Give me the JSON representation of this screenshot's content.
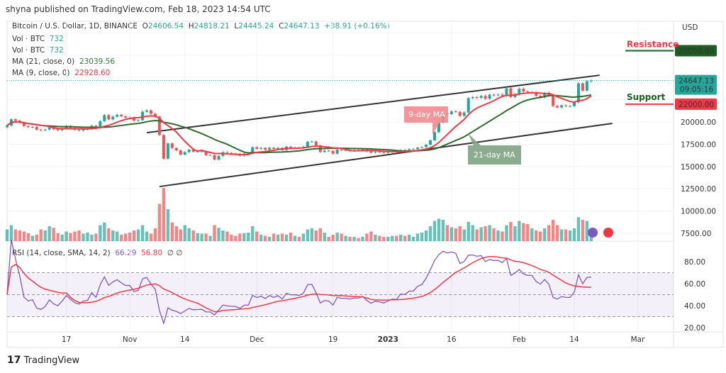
{
  "header": {
    "published": "shyna published on TradingView.com, Feb 18, 2023 14:54 UTC"
  },
  "legend": {
    "symbol": "Bitcoin / U.S. Dollar, 1D, BINANCE",
    "o_label": "O",
    "o": "24606.54",
    "h_label": "H",
    "h": "24818.21",
    "l_label": "L",
    "l": "24445.24",
    "c_label": "C",
    "c": "24647.13",
    "change": "+38.91 (+0.16%)",
    "vol1_label": "Vol · BTC",
    "vol1": "732",
    "vol2_label": "Vol · BTC",
    "vol2": "732",
    "ma21_label": "MA (21, close, 0)",
    "ma21": "23039.56",
    "ma9_label": "MA (9, close, 0)",
    "ma9": "22928.60",
    "rsi_label": "RSI (14, close, SMA, 14, 2)",
    "rsi": "66.29",
    "rsi_sma": "56.80",
    "rsi_extra": "∅ ∅"
  },
  "price_axis": {
    "currency": "USD",
    "ticks": [
      "20000.00",
      "17500.00",
      "15000.00",
      "12500.00",
      "10000.00",
      "7500.00"
    ],
    "current_price": "24647.13",
    "countdown": "09:05:16",
    "resistance_price": "28000.00",
    "support_price": "22000.00"
  },
  "rsi_axis": {
    "ticks": [
      "80.00",
      "60.00",
      "40.00",
      "20.00"
    ]
  },
  "time_axis": {
    "ticks": [
      {
        "label": "17",
        "idx": 14
      },
      {
        "label": "Nov",
        "idx": 29
      },
      {
        "label": "14",
        "idx": 42
      },
      {
        "label": "Dec",
        "idx": 59
      },
      {
        "label": "19",
        "idx": 77
      },
      {
        "label": "2023",
        "idx": 90,
        "bold": true
      },
      {
        "label": "16",
        "idx": 105
      },
      {
        "label": "Feb",
        "idx": 121
      },
      {
        "label": "14",
        "idx": 134
      },
      {
        "label": "Mar",
        "idx": 149
      }
    ]
  },
  "annotations": {
    "resistance": "Resistance",
    "support": "Support",
    "ma9_callout": "9-day MA",
    "ma21_callout": "21-day MA"
  },
  "colors": {
    "up": "#26a69a",
    "down": "#ef5350",
    "ma9": "#f23645",
    "ma21": "#2e6b2e",
    "rsi": "#7e57c2",
    "rsi_sma": "#f23645",
    "resistance": "#1b5e20",
    "support": "#f23645"
  },
  "footer": {
    "brand": "TradingView"
  },
  "chart_data": {
    "type": "candlestick",
    "start_date": "2022-10-03",
    "end_date": "2023-02-18",
    "ylim": [
      7500,
      30000
    ],
    "closes": [
      19600,
      20300,
      20150,
      19950,
      19530,
      19420,
      19450,
      19130,
      19060,
      19150,
      19380,
      19180,
      19070,
      19270,
      19550,
      19330,
      19120,
      19040,
      19170,
      19200,
      19570,
      19330,
      20090,
      20770,
      20290,
      20600,
      20810,
      20630,
      20490,
      20480,
      20150,
      20210,
      21150,
      21300,
      20920,
      20600,
      18540,
      15880,
      17590,
      17070,
      16810,
      16330,
      16620,
      16900,
      16660,
      16690,
      16700,
      16280,
      16280,
      15780,
      16190,
      16610,
      16520,
      16460,
      16440,
      16220,
      16440,
      16450,
      17170,
      16980,
      17090,
      16890,
      17110,
      16970,
      17090,
      16840,
      17230,
      17130,
      17130,
      17090,
      17210,
      17780,
      17810,
      17360,
      16630,
      16780,
      16740,
      16440,
      16890,
      16830,
      16830,
      16780,
      16840,
      16830,
      16910,
      16700,
      16550,
      16630,
      16600,
      16540,
      16620,
      16680,
      16670,
      16850,
      16830,
      16950,
      16950,
      17120,
      17180,
      17440,
      17940,
      18850,
      19930,
      20950,
      20880,
      21190,
      21130,
      20680,
      21070,
      22670,
      22780,
      22710,
      22920,
      22610,
      23060,
      23010,
      23070,
      22960,
      23780,
      22800,
      23130,
      23730,
      23430,
      23330,
      23330,
      22930,
      22760,
      23260,
      22930,
      21800,
      21630,
      21860,
      21780,
      21780,
      22200,
      24330,
      23520,
      24570,
      24647
    ],
    "volume_relative": [
      22,
      30,
      22,
      20,
      18,
      15,
      10,
      12,
      22,
      20,
      28,
      25,
      15,
      12,
      18,
      15,
      18,
      20,
      14,
      16,
      12,
      14,
      30,
      35,
      24,
      20,
      18,
      12,
      14,
      16,
      20,
      22,
      30,
      18,
      14,
      24,
      70,
      100,
      60,
      35,
      28,
      22,
      30,
      24,
      20,
      15,
      14,
      14,
      10,
      30,
      25,
      20,
      18,
      12,
      10,
      14,
      15,
      16,
      28,
      18,
      12,
      10,
      8,
      14,
      12,
      14,
      12,
      16,
      10,
      8,
      14,
      22,
      24,
      20,
      24,
      16,
      8,
      12,
      16,
      14,
      10,
      8,
      8,
      6,
      8,
      14,
      18,
      12,
      10,
      8,
      8,
      10,
      10,
      12,
      10,
      12,
      8,
      14,
      16,
      20,
      28,
      38,
      42,
      40,
      30,
      26,
      24,
      28,
      22,
      36,
      30,
      22,
      26,
      28,
      30,
      24,
      20,
      18,
      30,
      36,
      28,
      38,
      34,
      32,
      24,
      20,
      18,
      24,
      30,
      40,
      30,
      22,
      22,
      20,
      24,
      45,
      40,
      38,
      8
    ],
    "moving_averages": [
      {
        "name": "MA 9",
        "period": 9
      },
      {
        "name": "MA 21",
        "period": 21
      }
    ],
    "rsi": {
      "period": 14,
      "sma": 14,
      "levels": [
        70,
        50,
        30
      ],
      "ylim": [
        20,
        90
      ]
    },
    "trendlines": [
      {
        "name": "upper-channel",
        "from": [
          "2022-11-05",
          18800
        ],
        "to": [
          "2023-02-20",
          25250
        ]
      },
      {
        "name": "lower-channel",
        "from": [
          "2022-11-08",
          12750
        ],
        "to": [
          "2023-02-23",
          19840
        ]
      }
    ],
    "horizontal_levels": [
      {
        "name": "Resistance",
        "price": 28000
      },
      {
        "name": "Support",
        "price": 22000
      }
    ]
  }
}
